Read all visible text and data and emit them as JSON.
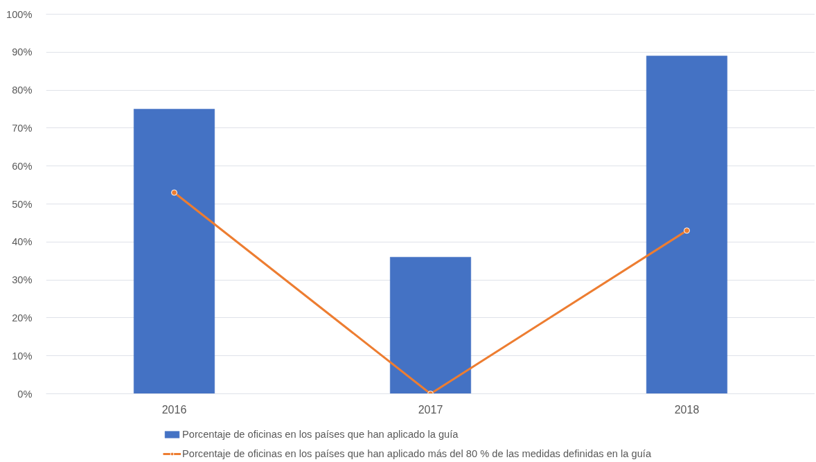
{
  "chart_data": {
    "type": "bar",
    "categories": [
      "2016",
      "2017",
      "2018"
    ],
    "series": [
      {
        "name": "Porcentaje de oficinas en los países que han aplicado la guía",
        "color": "#4472c4",
        "values": [
          75,
          36,
          89
        ]
      },
      {
        "name": "Porcentaje de oficinas en los países que han aplicado más del 80 % de las medidas definidas en la guía",
        "type": "line",
        "color": "#ed7d31",
        "values": [
          53,
          0,
          43
        ]
      }
    ],
    "ylim": [
      0,
      100
    ],
    "yticks": [
      {
        "value": 0,
        "label": "0%"
      },
      {
        "value": 10,
        "label": "10%"
      },
      {
        "value": 20,
        "label": "20%"
      },
      {
        "value": 30,
        "label": "30%"
      },
      {
        "value": 40,
        "label": "40%"
      },
      {
        "value": 50,
        "label": "50%"
      },
      {
        "value": 60,
        "label": "60%"
      },
      {
        "value": 70,
        "label": "70%"
      },
      {
        "value": 80,
        "label": "80%"
      },
      {
        "value": 90,
        "label": "90%"
      },
      {
        "value": 100,
        "label": "100%"
      }
    ],
    "grid": "y",
    "legend": "bottom",
    "marker": "circle",
    "line_style": "solid"
  }
}
